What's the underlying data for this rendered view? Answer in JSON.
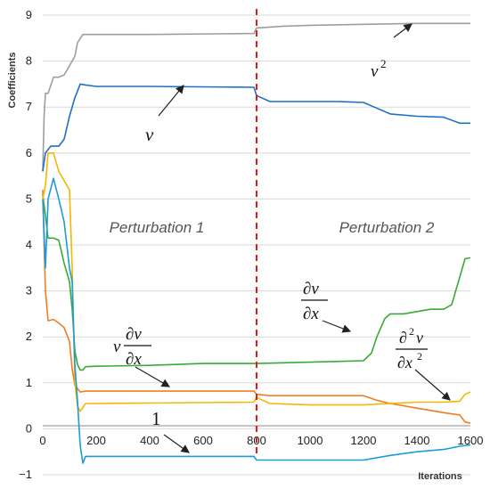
{
  "chart_data": {
    "type": "line",
    "xlabel": "Iterations",
    "ylabel": "Coefficients",
    "xlim": [
      0,
      1600
    ],
    "ylim": [
      -1,
      9
    ],
    "x_ticks": [
      "0",
      "200",
      "400",
      "600",
      "800",
      "1000",
      "1200",
      "1400",
      "1600"
    ],
    "y_ticks": [
      "−1",
      "0",
      "1",
      "2",
      "3",
      "4",
      "5",
      "6",
      "7",
      "8",
      "9"
    ],
    "perturbation_labels": [
      "Perturbation 1",
      "Perturbation 2"
    ],
    "vline_x": 800,
    "series": [
      {
        "name": "v^2",
        "color": "#9e9e9e",
        "x": [
          0,
          5,
          10,
          20,
          40,
          60,
          80,
          100,
          120,
          130,
          150,
          170,
          200,
          400,
          790,
          800,
          900,
          1000,
          1200,
          1400,
          1600
        ],
        "y": [
          5.6,
          6.8,
          7.3,
          7.3,
          7.65,
          7.65,
          7.7,
          7.9,
          8.1,
          8.4,
          8.58,
          8.58,
          8.58,
          8.58,
          8.6,
          8.72,
          8.76,
          8.78,
          8.8,
          8.82,
          8.82
        ]
      },
      {
        "name": "v",
        "color": "#1f6fc4",
        "x": [
          0,
          10,
          30,
          60,
          80,
          100,
          120,
          140,
          160,
          200,
          400,
          790,
          800,
          850,
          1000,
          1100,
          1200,
          1240,
          1300,
          1400,
          1500,
          1560,
          1600
        ],
        "y": [
          5.6,
          6.0,
          6.15,
          6.15,
          6.3,
          6.8,
          7.2,
          7.5,
          7.48,
          7.45,
          7.45,
          7.43,
          7.25,
          7.12,
          7.12,
          7.12,
          7.1,
          7.0,
          6.85,
          6.8,
          6.78,
          6.65,
          6.65
        ]
      },
      {
        "name": "∂v/∂x",
        "color": "#3aa935",
        "x": [
          0,
          20,
          40,
          60,
          80,
          100,
          110,
          120,
          130,
          140,
          150,
          160,
          200,
          400,
          600,
          790,
          800,
          1000,
          1200,
          1230,
          1250,
          1280,
          1300,
          1350,
          1400,
          1450,
          1500,
          1530,
          1540,
          1560,
          1580,
          1600
        ],
        "y": [
          5.1,
          4.15,
          4.15,
          4.1,
          3.6,
          3.2,
          2.6,
          1.7,
          1.4,
          1.28,
          1.28,
          1.35,
          1.36,
          1.38,
          1.42,
          1.42,
          1.42,
          1.45,
          1.48,
          1.65,
          2.0,
          2.4,
          2.5,
          2.5,
          2.55,
          2.6,
          2.6,
          2.7,
          2.9,
          3.3,
          3.7,
          3.72
        ]
      },
      {
        "name": "v∂v/∂x",
        "color": "#ef7d22",
        "x": [
          0,
          5,
          10,
          20,
          40,
          60,
          80,
          100,
          110,
          120,
          140,
          160,
          200,
          400,
          600,
          790,
          800,
          850,
          1000,
          1200,
          1250,
          1300,
          1400,
          1500,
          1560,
          1580,
          1600
        ],
        "y": [
          5.2,
          4.0,
          3.0,
          2.35,
          2.38,
          2.3,
          2.2,
          1.9,
          1.3,
          0.95,
          0.8,
          0.82,
          0.82,
          0.82,
          0.82,
          0.82,
          0.75,
          0.72,
          0.72,
          0.72,
          0.62,
          0.55,
          0.45,
          0.35,
          0.3,
          0.15,
          0.12
        ]
      },
      {
        "name": "∂²v/∂x²",
        "color": "#f5b700",
        "x": [
          0,
          10,
          20,
          40,
          60,
          80,
          100,
          110,
          120,
          130,
          140,
          160,
          200,
          400,
          790,
          800,
          850,
          1000,
          1200,
          1300,
          1400,
          1500,
          1560,
          1580,
          1600
        ],
        "y": [
          5.0,
          5.3,
          6.0,
          6.0,
          5.6,
          5.4,
          5.2,
          3.5,
          1.0,
          0.5,
          0.38,
          0.55,
          0.55,
          0.56,
          0.58,
          0.68,
          0.55,
          0.52,
          0.52,
          0.55,
          0.58,
          0.58,
          0.6,
          0.75,
          0.8
        ]
      },
      {
        "name": "1",
        "color": "#1b9bd8",
        "x": [
          0,
          10,
          20,
          40,
          60,
          80,
          100,
          110,
          120,
          130,
          140,
          150,
          160,
          200,
          400,
          600,
          790,
          800,
          1000,
          1200,
          1300,
          1400,
          1500,
          1560,
          1600
        ],
        "y": [
          5.0,
          3.5,
          5.0,
          5.45,
          5.0,
          4.5,
          3.5,
          3.2,
          1.4,
          0.6,
          -0.35,
          -0.75,
          -0.6,
          -0.6,
          -0.6,
          -0.6,
          -0.6,
          -0.68,
          -0.68,
          -0.68,
          -0.58,
          -0.5,
          -0.45,
          -0.38,
          -0.35
        ]
      }
    ]
  }
}
